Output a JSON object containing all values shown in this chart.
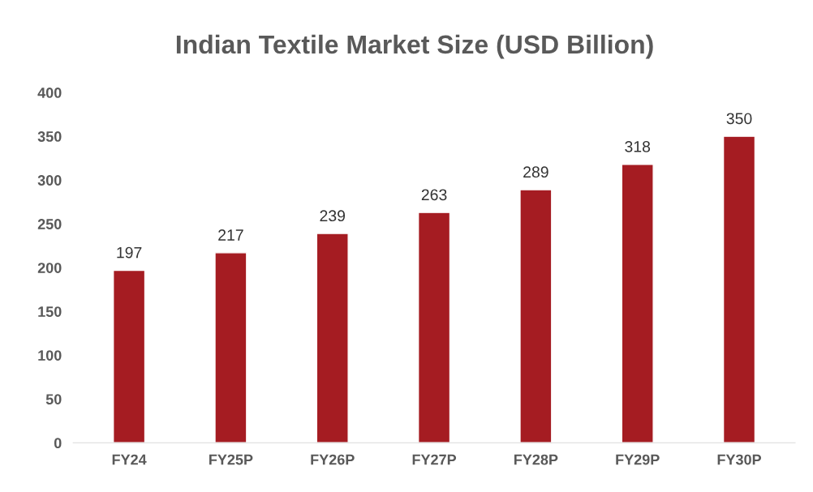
{
  "chart_data": {
    "type": "bar",
    "title": "Indian Textile Market Size (USD Billion)",
    "categories": [
      "FY24",
      "FY25P",
      "FY26P",
      "FY27P",
      "FY28P",
      "FY29P",
      "FY30P"
    ],
    "values": [
      197,
      217,
      239,
      263,
      289,
      318,
      350
    ],
    "color": "#a51c22",
    "ylim": [
      0,
      400
    ],
    "yticks": [
      0,
      50,
      100,
      150,
      200,
      250,
      300,
      350,
      400
    ],
    "data_labels": true,
    "grid": false,
    "legend": false
  }
}
